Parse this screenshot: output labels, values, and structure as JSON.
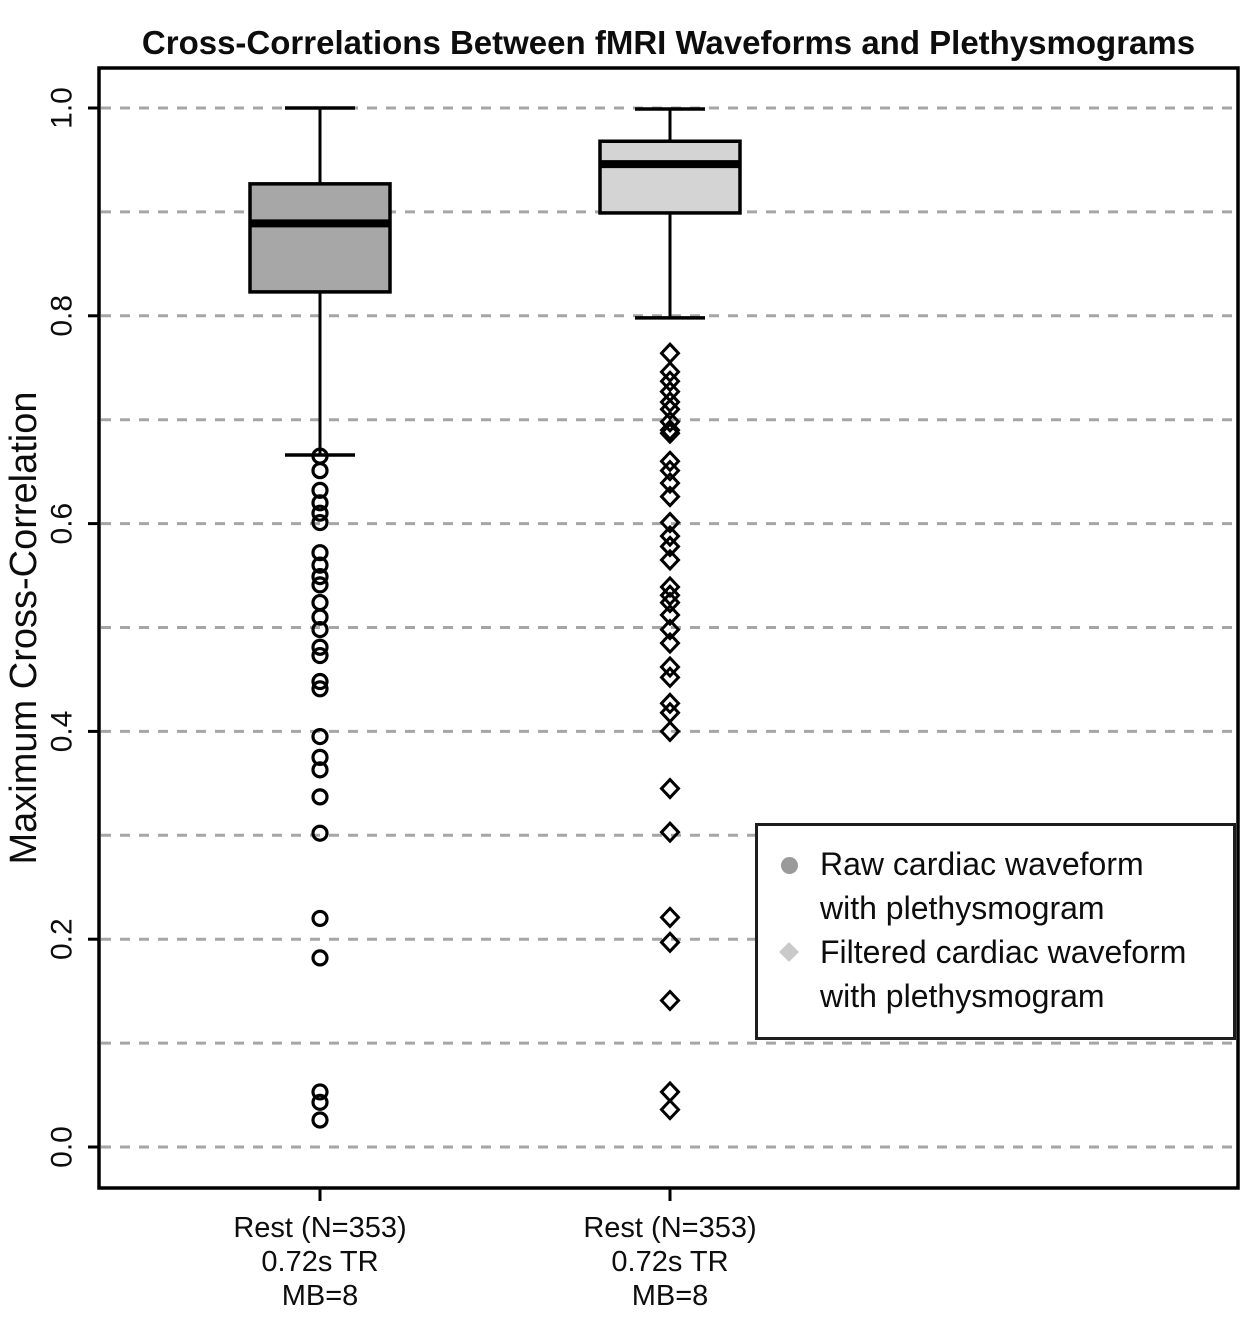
{
  "chart_data": {
    "type": "boxplot",
    "title": "Cross-Correlations Between fMRI Waveforms and Plethysmograms",
    "ylabel": "Maximum Cross-Correlation",
    "xlabel": "",
    "ylim": [
      0.0,
      1.0
    ],
    "yticks": [
      0.0,
      0.2,
      0.4,
      0.6,
      0.8,
      1.0
    ],
    "ytick_decimals": 1,
    "gridline_values": [
      0.0,
      0.1,
      0.2,
      0.3,
      0.4,
      0.5,
      0.6,
      0.7,
      0.8,
      0.9,
      1.0
    ],
    "grid_style": "dashed",
    "colors": {
      "background": "#ffffff",
      "axis": "#000000",
      "grid": "#a6a6a6",
      "raw_box_fill": "#a7a7a7",
      "filtered_box_fill": "#d4d4d4",
      "legend_circle": "#9a9a9a",
      "legend_diamond": "#c9c9c9"
    },
    "groups": [
      {
        "name": "Raw cardiac waveform with plethysmogram",
        "label_lines": [
          "Rest (N=353)",
          "0.72s TR",
          "MB=8"
        ],
        "marker": "circle",
        "box_fill": "#a7a7a7",
        "whisker_high": 1.0,
        "q3": 0.927,
        "median": 0.889,
        "q1": 0.823,
        "whisker_low": 0.666,
        "outliers": [
          0.665,
          0.651,
          0.632,
          0.62,
          0.61,
          0.601,
          0.572,
          0.56,
          0.549,
          0.541,
          0.524,
          0.51,
          0.498,
          0.481,
          0.473,
          0.448,
          0.441,
          0.395,
          0.375,
          0.363,
          0.337,
          0.302,
          0.22,
          0.182,
          0.053,
          0.043,
          0.026
        ]
      },
      {
        "name": "Filtered cardiac waveform with plethysmogram",
        "label_lines": [
          "Rest (N=353)",
          "0.72s TR",
          "MB=8"
        ],
        "marker": "diamond",
        "box_fill": "#d4d4d4",
        "whisker_high": 0.999,
        "q3": 0.968,
        "median": 0.946,
        "q1": 0.899,
        "whisker_low": 0.798,
        "outliers": [
          0.764,
          0.746,
          0.737,
          0.727,
          0.717,
          0.71,
          0.698,
          0.69,
          0.687,
          0.66,
          0.651,
          0.639,
          0.626,
          0.601,
          0.588,
          0.578,
          0.565,
          0.539,
          0.531,
          0.524,
          0.512,
          0.498,
          0.485,
          0.462,
          0.452,
          0.427,
          0.418,
          0.4,
          0.345,
          0.303,
          0.221,
          0.197,
          0.141,
          0.053,
          0.036
        ]
      }
    ],
    "legend": {
      "position": "right-center",
      "entries": [
        {
          "marker": "circle",
          "color": "#9a9a9a",
          "lines": [
            "Raw cardiac waveform",
            "with plethysmogram"
          ]
        },
        {
          "marker": "diamond",
          "color": "#c9c9c9",
          "lines": [
            "Filtered cardiac waveform",
            "with plethysmogram"
          ]
        }
      ]
    }
  }
}
